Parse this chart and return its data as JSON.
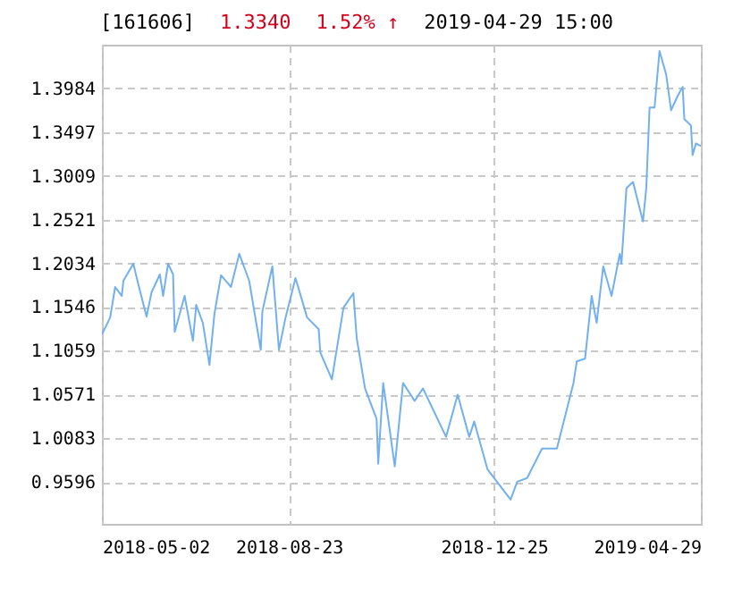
{
  "chart_data": {
    "type": "line",
    "title": "[161606]",
    "annotations": [
      "1.3340",
      "1.52% ↑",
      "2019-04-29 15:00"
    ],
    "x": [
      "2018-05-02",
      "2018-05-07",
      "2018-05-10",
      "2018-05-14",
      "2018-05-15",
      "2018-05-21",
      "2018-05-24",
      "2018-05-29",
      "2018-06-01",
      "2018-06-06",
      "2018-06-08",
      "2018-06-11",
      "2018-06-14",
      "2018-06-15",
      "2018-06-21",
      "2018-06-26",
      "2018-06-28",
      "2018-07-02",
      "2018-07-06",
      "2018-07-09",
      "2018-07-13",
      "2018-07-19",
      "2018-07-24",
      "2018-07-30",
      "2018-08-06",
      "2018-08-07",
      "2018-08-13",
      "2018-08-17",
      "2018-08-21",
      "2018-08-27",
      "2018-09-03",
      "2018-09-10",
      "2018-09-11",
      "2018-09-18",
      "2018-09-25",
      "2018-10-01",
      "2018-10-03",
      "2018-10-08",
      "2018-10-15",
      "2018-10-16",
      "2018-10-19",
      "2018-10-26",
      "2018-10-31",
      "2018-11-07",
      "2018-11-12",
      "2018-11-19",
      "2018-11-26",
      "2018-12-03",
      "2018-12-10",
      "2018-12-13",
      "2018-12-21",
      "2018-12-28",
      "2019-01-04",
      "2019-01-08",
      "2019-01-14",
      "2019-01-23",
      "2019-02-01",
      "2019-02-11",
      "2019-02-13",
      "2019-02-18",
      "2019-02-22",
      "2019-02-25",
      "2019-03-01",
      "2019-03-06",
      "2019-03-11",
      "2019-03-12",
      "2019-03-15",
      "2019-03-19",
      "2019-03-25",
      "2019-03-27",
      "2019-03-29",
      "2019-04-01",
      "2019-04-04",
      "2019-04-08",
      "2019-04-11",
      "2019-04-15",
      "2019-04-18",
      "2019-04-19",
      "2019-04-23",
      "2019-04-24",
      "2019-04-26",
      "2019-04-29"
    ],
    "series": [
      {
        "color": "#72b0ee",
        "values": [
          1.124,
          1.143,
          1.177,
          1.167,
          1.184,
          1.203,
          1.18,
          1.144,
          1.171,
          1.191,
          1.167,
          1.203,
          1.191,
          1.127,
          1.167,
          1.117,
          1.157,
          1.137,
          1.09,
          1.147,
          1.19,
          1.177,
          1.214,
          1.184,
          1.107,
          1.15,
          1.2,
          1.107,
          1.143,
          1.187,
          1.143,
          1.13,
          1.104,
          1.074,
          1.154,
          1.17,
          1.12,
          1.064,
          1.03,
          0.98,
          1.07,
          0.977,
          1.07,
          1.05,
          1.064,
          1.037,
          1.01,
          1.057,
          1.01,
          1.027,
          0.974,
          0.957,
          0.94,
          0.96,
          0.964,
          0.997,
          0.997,
          1.07,
          1.094,
          1.097,
          1.167,
          1.137,
          1.2,
          1.167,
          1.214,
          1.203,
          1.287,
          1.294,
          1.25,
          1.287,
          1.377,
          1.377,
          1.44,
          1.414,
          1.374,
          1.39,
          1.4,
          1.364,
          1.357,
          1.324,
          1.337,
          1.334
        ]
      }
    ],
    "xlim": [
      "2018-05-02",
      "2019-04-29"
    ],
    "xticks": [
      "2018-05-02",
      "2018-08-23",
      "2018-12-25",
      "2019-04-29"
    ],
    "ylim": [
      0.913,
      1.447
    ],
    "yticks": [
      0.9596,
      1.0083,
      1.0571,
      1.1059,
      1.1546,
      1.2034,
      1.2521,
      1.3009,
      1.3497,
      1.3984
    ],
    "grid": true,
    "marker": "none",
    "line_style": "solid"
  }
}
